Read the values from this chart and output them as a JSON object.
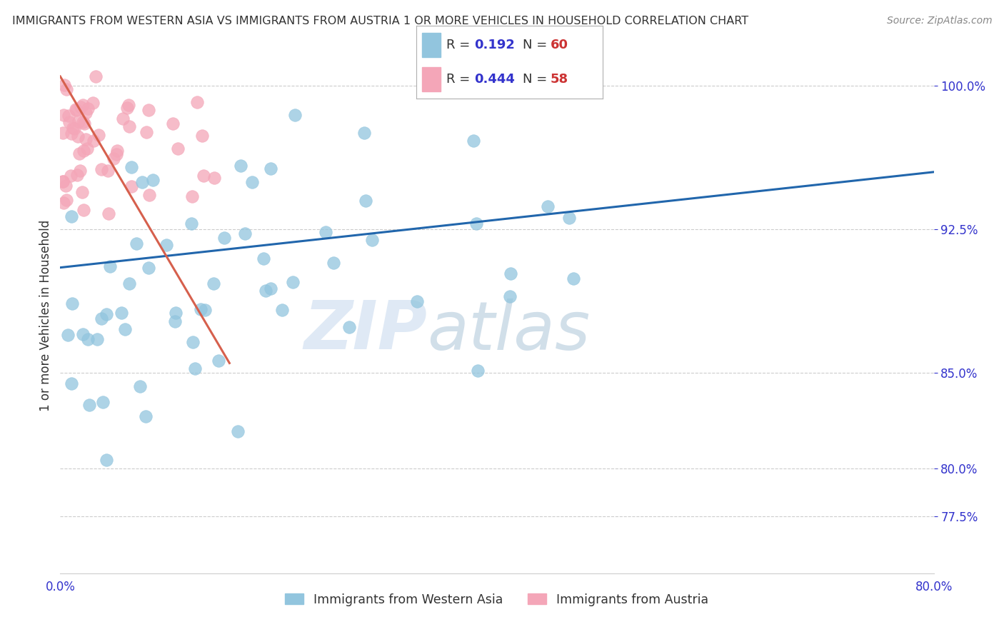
{
  "title": "IMMIGRANTS FROM WESTERN ASIA VS IMMIGRANTS FROM AUSTRIA 1 OR MORE VEHICLES IN HOUSEHOLD CORRELATION CHART",
  "source": "Source: ZipAtlas.com",
  "ylabel": "1 or more Vehicles in Household",
  "legend_blue_R": "0.192",
  "legend_blue_N": "60",
  "legend_pink_R": "0.444",
  "legend_pink_N": "58",
  "blue_color": "#92c5de",
  "pink_color": "#f4a6b8",
  "blue_line_color": "#2166ac",
  "pink_line_color": "#d6604d",
  "watermark_zip": "ZIP",
  "watermark_atlas": "atlas",
  "xlim": [
    0.0,
    0.8
  ],
  "ylim": [
    0.745,
    1.015
  ],
  "ytick_vals": [
    0.775,
    0.8,
    0.85,
    0.925,
    1.0
  ],
  "ytick_labels": [
    "77.5%",
    "80.0%",
    "85.0%",
    "92.5%",
    "100.0%"
  ],
  "grid_color": "#cccccc",
  "bg_color": "#ffffff",
  "title_color": "#333333",
  "source_color": "#888888",
  "axis_label_color": "#333333",
  "tick_color": "#3333cc",
  "legend_R_color": "#3333cc",
  "legend_N_color": "#cc3333",
  "blue_label": "Immigrants from Western Asia",
  "pink_label": "Immigrants from Austria",
  "blue_line_x0": 0.0,
  "blue_line_x1": 0.8,
  "blue_line_y0": 0.905,
  "blue_line_y1": 0.955,
  "pink_line_x0": 0.0,
  "pink_line_x1": 0.155,
  "pink_line_y0": 1.005,
  "pink_line_y1": 0.855
}
